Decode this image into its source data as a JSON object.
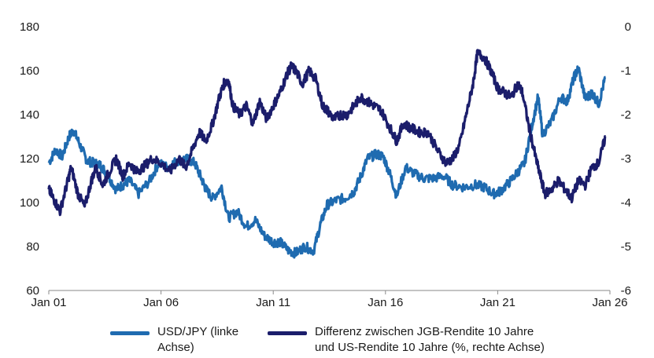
{
  "chart_data": {
    "type": "line",
    "title": "",
    "xlabel": "",
    "ylabel_left": "",
    "ylabel_right": "",
    "x_ticks": [
      "Jan 01",
      "Jan 06",
      "Jan 11",
      "Jan 16",
      "Jan 21",
      "Jan 26"
    ],
    "x_tick_years": [
      2001,
      2006,
      2011,
      2016,
      2021,
      2026
    ],
    "x_range": [
      2001,
      2026
    ],
    "left_axis": {
      "range": [
        60,
        180
      ],
      "ticks": [
        "60",
        "80",
        "100",
        "120",
        "140",
        "160",
        "180"
      ],
      "tick_values": [
        60,
        80,
        100,
        120,
        140,
        160,
        180
      ]
    },
    "right_axis": {
      "range": [
        -6,
        0
      ],
      "ticks": [
        "-6",
        "-5",
        "-4",
        "-3",
        "-2",
        "-1",
        "0"
      ],
      "tick_values": [
        -6,
        -5,
        -4,
        -3,
        -2,
        -1,
        0
      ]
    },
    "grid": false,
    "legend_position": "bottom",
    "series": [
      {
        "name": "USD/JPY (linke Achse)",
        "name_lines": [
          "USD/JPY (linke",
          "Achse)"
        ],
        "axis": "left",
        "color": "#1f6bb0",
        "x": [
          2001.0,
          2001.3,
          2001.6,
          2001.9,
          2002.1,
          2002.4,
          2002.7,
          2003.0,
          2003.3,
          2003.6,
          2004.0,
          2004.3,
          2004.6,
          2005.0,
          2005.5,
          2005.9,
          2006.3,
          2006.7,
          2007.1,
          2007.5,
          2007.8,
          2008.0,
          2008.3,
          2008.7,
          2009.0,
          2009.4,
          2009.8,
          2010.2,
          2010.6,
          2011.0,
          2011.3,
          2011.7,
          2012.0,
          2012.4,
          2012.8,
          2013.1,
          2013.4,
          2013.8,
          2014.2,
          2014.6,
          2014.9,
          2015.2,
          2015.6,
          2015.9,
          2016.2,
          2016.5,
          2016.9,
          2017.3,
          2017.7,
          2018.1,
          2018.6,
          2019.0,
          2019.5,
          2020.0,
          2020.4,
          2020.8,
          2021.1,
          2021.5,
          2021.9,
          2022.2,
          2022.5,
          2022.8,
          2023.0,
          2023.4,
          2023.8,
          2024.1,
          2024.4,
          2024.6,
          2024.9,
          2025.2,
          2025.5,
          2025.8
        ],
        "values": [
          118,
          124,
          121,
          130,
          133,
          126,
          119,
          118,
          117,
          113,
          106,
          108,
          110,
          104,
          110,
          118,
          116,
          119,
          120,
          118,
          111,
          106,
          102,
          107,
          93,
          96,
          89,
          92,
          85,
          82,
          82,
          78,
          77,
          80,
          78,
          90,
          99,
          101,
          102,
          105,
          112,
          120,
          122,
          121,
          113,
          103,
          116,
          113,
          111,
          111,
          112,
          108,
          107,
          108,
          107,
          104,
          105,
          109,
          114,
          118,
          134,
          148,
          131,
          137,
          148,
          146,
          157,
          161,
          147,
          150,
          145,
          157
        ]
      },
      {
        "name": "Differenz zwischen JGB-Rendite 10 Jahre und US-Rendite 10 Jahre (%, rechte Achse)",
        "name_lines": [
          "Differenz zwischen JGB-Rendite 10 Jahre",
          "und US-Rendite 10 Jahre (%, rechte Achse)"
        ],
        "axis": "right",
        "color": "#1b1d6b",
        "x": [
          2001.0,
          2001.2,
          2001.5,
          2001.8,
          2002.0,
          2002.3,
          2002.6,
          2002.9,
          2003.1,
          2003.4,
          2003.7,
          2004.0,
          2004.3,
          2004.6,
          2004.9,
          2005.2,
          2005.6,
          2006.0,
          2006.4,
          2006.8,
          2007.1,
          2007.4,
          2007.7,
          2008.0,
          2008.3,
          2008.6,
          2008.8,
          2009.0,
          2009.2,
          2009.5,
          2009.8,
          2010.1,
          2010.4,
          2010.7,
          2011.0,
          2011.3,
          2011.6,
          2011.8,
          2012.0,
          2012.3,
          2012.6,
          2012.9,
          2013.2,
          2013.4,
          2013.7,
          2014.0,
          2014.3,
          2014.6,
          2014.9,
          2015.2,
          2015.5,
          2015.8,
          2016.2,
          2016.5,
          2016.8,
          2017.1,
          2017.5,
          2017.9,
          2018.3,
          2018.7,
          2019.0,
          2019.3,
          2019.6,
          2019.9,
          2020.1,
          2020.4,
          2020.7,
          2021.0,
          2021.3,
          2021.6,
          2021.9,
          2022.1,
          2022.4,
          2022.7,
          2022.9,
          2023.1,
          2023.4,
          2023.7,
          2024.0,
          2024.3,
          2024.6,
          2024.9,
          2025.2,
          2025.5,
          2025.8
        ],
        "values": [
          -3.7,
          -3.9,
          -4.2,
          -3.6,
          -3.2,
          -3.8,
          -4.1,
          -3.5,
          -3.2,
          -3.6,
          -3.3,
          -3.0,
          -3.4,
          -3.1,
          -3.3,
          -3.2,
          -3.0,
          -3.1,
          -3.3,
          -3.0,
          -3.2,
          -2.8,
          -2.4,
          -2.6,
          -2.2,
          -1.6,
          -1.3,
          -1.2,
          -1.8,
          -2.0,
          -1.8,
          -2.2,
          -1.7,
          -2.1,
          -1.8,
          -1.5,
          -1.1,
          -0.9,
          -1.0,
          -1.3,
          -1.0,
          -1.2,
          -1.8,
          -1.9,
          -2.1,
          -2.0,
          -2.0,
          -1.8,
          -1.6,
          -1.7,
          -1.8,
          -1.9,
          -2.3,
          -2.6,
          -2.2,
          -2.3,
          -2.4,
          -2.4,
          -2.8,
          -3.1,
          -3.0,
          -2.7,
          -2.0,
          -1.3,
          -0.6,
          -0.7,
          -1.0,
          -1.4,
          -1.5,
          -1.6,
          -1.3,
          -1.5,
          -2.3,
          -3.0,
          -3.4,
          -3.8,
          -3.7,
          -3.5,
          -3.7,
          -3.9,
          -3.5,
          -3.6,
          -3.2,
          -3.1,
          -2.5
        ]
      }
    ]
  }
}
